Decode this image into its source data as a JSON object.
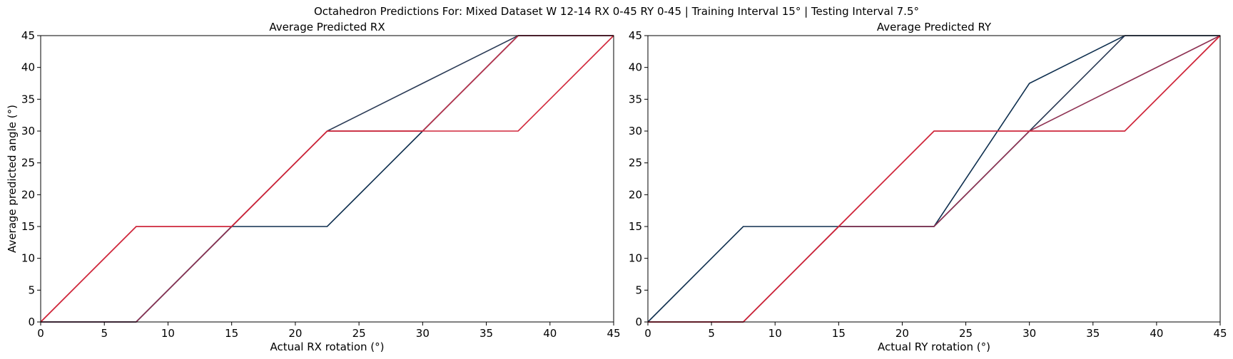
{
  "suptitle": "Octahedron Predictions For: Mixed Dataset W 12-14 RX 0-45 RY 0-45 | Training Interval 15° | Testing Interval 7.5°",
  "colors": {
    "navy": "#0e2f4f",
    "dark_slate": "#2a3a55",
    "red": "#d1263a",
    "crimson": "#b8324b",
    "plum": "#8e3152"
  },
  "chart_data": [
    {
      "type": "line",
      "title": "Average Predicted RX",
      "xlabel": "Actual RX rotation (°)",
      "ylabel": "Average predicted angle (°)",
      "xlim": [
        0,
        45
      ],
      "ylim": [
        0,
        45
      ],
      "xticks": [
        0,
        5,
        10,
        15,
        20,
        25,
        30,
        35,
        40,
        45
      ],
      "yticks": [
        0,
        5,
        10,
        15,
        20,
        25,
        30,
        35,
        40,
        45
      ],
      "grid": false,
      "series": [
        {
          "color": "navy",
          "x": [
            0,
            7.5,
            15,
            22.5,
            30,
            37.5,
            45
          ],
          "y": [
            0,
            0,
            15,
            15,
            30,
            45,
            45
          ]
        },
        {
          "color": "dark_slate",
          "x": [
            0,
            7.5,
            15,
            22.5,
            30,
            37.5,
            45
          ],
          "y": [
            0,
            0,
            15,
            30,
            37.5,
            45,
            45
          ]
        },
        {
          "color": "plum",
          "x": [
            0,
            7.5,
            15,
            22.5,
            30,
            37.5,
            45
          ],
          "y": [
            0,
            0,
            15,
            30,
            30,
            45,
            45
          ]
        },
        {
          "color": "crimson",
          "x": [
            0,
            7.5,
            15,
            22.5,
            30,
            37.5,
            45
          ],
          "y": [
            0,
            15,
            15,
            30,
            30,
            45,
            45
          ]
        },
        {
          "color": "red",
          "x": [
            0,
            7.5,
            15,
            22.5,
            30,
            37.5,
            45
          ],
          "y": [
            0,
            15,
            15,
            30,
            30,
            30,
            45
          ]
        }
      ]
    },
    {
      "type": "line",
      "title": "Average Predicted RY",
      "xlabel": "Actual RY rotation (°)",
      "ylabel": "",
      "xlim": [
        0,
        45
      ],
      "ylim": [
        0,
        45
      ],
      "xticks": [
        0,
        5,
        10,
        15,
        20,
        25,
        30,
        35,
        40,
        45
      ],
      "yticks": [
        0,
        5,
        10,
        15,
        20,
        25,
        30,
        35,
        40,
        45
      ],
      "grid": false,
      "series": [
        {
          "color": "navy",
          "x": [
            0,
            7.5,
            15,
            22.5,
            30,
            37.5,
            45
          ],
          "y": [
            0,
            15,
            15,
            15,
            37.5,
            45,
            45
          ]
        },
        {
          "color": "dark_slate",
          "x": [
            0,
            7.5,
            15,
            22.5,
            30,
            37.5,
            45
          ],
          "y": [
            0,
            0,
            15,
            15,
            30,
            45,
            45
          ]
        },
        {
          "color": "plum",
          "x": [
            0,
            7.5,
            15,
            22.5,
            30,
            37.5,
            45
          ],
          "y": [
            0,
            0,
            15,
            15,
            30,
            37.5,
            45
          ]
        },
        {
          "color": "crimson",
          "x": [
            0,
            7.5,
            15,
            22.5,
            30,
            37.5,
            45
          ],
          "y": [
            0,
            0,
            15,
            30,
            30,
            30,
            45
          ]
        },
        {
          "color": "red",
          "x": [
            0,
            7.5,
            15,
            22.5,
            30,
            37.5,
            45
          ],
          "y": [
            0,
            0,
            15,
            30,
            30,
            30,
            45
          ]
        }
      ]
    }
  ]
}
